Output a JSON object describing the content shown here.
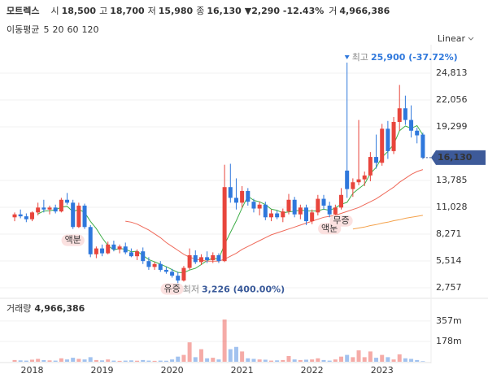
{
  "header": {
    "name": "모트렉스",
    "items": [
      {
        "label": "시",
        "value": "18,500"
      },
      {
        "label": "고",
        "value": "18,700"
      },
      {
        "label": "저",
        "value": "15,980"
      },
      {
        "label": "종",
        "value": "16,130"
      }
    ],
    "change": "▼2,290 -12.43%",
    "volume_label": "거",
    "volume": "4,966,386"
  },
  "chart_data": {
    "type": "candlestick",
    "legend_title": "이동평균",
    "scale_label": "Linear",
    "volume_title": "거래량",
    "volume_value": "4,966,386",
    "last_price_label": "16,130",
    "up_color": "#e8453c",
    "down_color": "#2f78dc",
    "categories": [
      null,
      null,
      null,
      "2018",
      null,
      null,
      null,
      null,
      null,
      null,
      null,
      null,
      null,
      null,
      null,
      "2019",
      null,
      null,
      null,
      null,
      null,
      null,
      null,
      null,
      null,
      null,
      null,
      "2020",
      null,
      null,
      null,
      null,
      null,
      null,
      null,
      null,
      null,
      null,
      null,
      "2021",
      null,
      null,
      null,
      null,
      null,
      null,
      null,
      null,
      null,
      null,
      null,
      "2022",
      null,
      null,
      null,
      null,
      null,
      null,
      null,
      null,
      null,
      null,
      null,
      "2023",
      null,
      null,
      null,
      null,
      null,
      null,
      null
    ],
    "open": [
      10000,
      10300,
      10100,
      9800,
      10500,
      11000,
      10800,
      11000,
      10600,
      11800,
      11500,
      9000,
      11200,
      9000,
      6200,
      6800,
      6300,
      7200,
      6700,
      7000,
      6400,
      6000,
      6500,
      5500,
      4900,
      5200,
      4600,
      4400,
      4000,
      3500,
      4800,
      6100,
      5400,
      5900,
      5600,
      6100,
      5500,
      13100,
      12000,
      11500,
      12700,
      11600,
      10900,
      11300,
      10000,
      10400,
      10000,
      10600,
      11800,
      10300,
      11000,
      9600,
      10500,
      11900,
      11200,
      10300,
      11000,
      14800,
      12900,
      13600,
      13900,
      14300,
      16200,
      15600,
      19100,
      16800,
      19800,
      21200,
      20000,
      18900,
      18500
    ],
    "high": [
      10500,
      10800,
      10400,
      10600,
      11500,
      11800,
      11200,
      11300,
      12000,
      12500,
      11800,
      11500,
      11400,
      9200,
      7000,
      7200,
      7500,
      7600,
      7200,
      7400,
      6800,
      6700,
      6900,
      5900,
      5400,
      5500,
      4900,
      4700,
      4400,
      5000,
      6800,
      6600,
      6200,
      6500,
      6400,
      6300,
      15400,
      15500,
      14000,
      13200,
      13000,
      11900,
      11600,
      11600,
      10800,
      10700,
      10900,
      12400,
      12100,
      11300,
      11300,
      10800,
      12300,
      12300,
      11600,
      11300,
      13000,
      25900,
      14000,
      20000,
      14700,
      16700,
      18500,
      19600,
      19900,
      20300,
      23600,
      22500,
      21500,
      19200,
      18700
    ],
    "low": [
      9600,
      9900,
      9500,
      9600,
      10200,
      10500,
      10300,
      10400,
      10500,
      11300,
      8800,
      8900,
      8800,
      5900,
      5800,
      6000,
      6200,
      6500,
      6300,
      6200,
      5900,
      5600,
      5200,
      4600,
      4600,
      4400,
      4200,
      3800,
      3226,
      3400,
      4600,
      5200,
      5100,
      5300,
      5300,
      5300,
      5400,
      11500,
      10800,
      11000,
      11200,
      10500,
      10200,
      9700,
      9600,
      9800,
      9500,
      10300,
      10000,
      9800,
      9200,
      9300,
      10200,
      10800,
      10000,
      9900,
      10800,
      12000,
      12100,
      13300,
      13200,
      13700,
      15000,
      15300,
      16000,
      16500,
      18900,
      19500,
      18200,
      17600,
      15980
    ],
    "close": [
      10300,
      10100,
      9800,
      10500,
      11000,
      10800,
      11000,
      10600,
      11800,
      11500,
      9000,
      11200,
      9000,
      6200,
      6800,
      6300,
      7200,
      6700,
      7000,
      6400,
      6000,
      6500,
      5500,
      4900,
      5200,
      4600,
      4400,
      4000,
      3500,
      4800,
      6100,
      5400,
      5900,
      5600,
      6100,
      5500,
      13100,
      12000,
      11500,
      12700,
      11600,
      10900,
      11300,
      10000,
      10400,
      10000,
      10600,
      11800,
      10300,
      11000,
      9600,
      10500,
      11900,
      11200,
      10300,
      11000,
      12300,
      12900,
      13600,
      13900,
      14300,
      16200,
      15600,
      19100,
      16800,
      19800,
      21200,
      20000,
      18900,
      18420,
      16130
    ],
    "volume": [
      15000000,
      12000000,
      10000000,
      18000000,
      25000000,
      14000000,
      12000000,
      10000000,
      30000000,
      20000000,
      35000000,
      25000000,
      20000000,
      40000000,
      15000000,
      12000000,
      20000000,
      10000000,
      8000000,
      10000000,
      12000000,
      9000000,
      15000000,
      10000000,
      8000000,
      10000000,
      9000000,
      20000000,
      45000000,
      60000000,
      170000000,
      40000000,
      110000000,
      30000000,
      35000000,
      20000000,
      370000000,
      110000000,
      130000000,
      90000000,
      30000000,
      25000000,
      20000000,
      18000000,
      10000000,
      12000000,
      15000000,
      50000000,
      20000000,
      15000000,
      18000000,
      20000000,
      30000000,
      15000000,
      10000000,
      20000000,
      45000000,
      60000000,
      40000000,
      100000000,
      40000000,
      90000000,
      35000000,
      60000000,
      40000000,
      20000000,
      65000000,
      30000000,
      25000000,
      15000000,
      4966386
    ],
    "series": [
      {
        "name": "5",
        "color": "#3fae49",
        "values": [
          null,
          null,
          null,
          null,
          10340,
          10640,
          10680,
          10780,
          11040,
          11140,
          10580,
          10820,
          10500,
          9580,
          8840,
          7900,
          7100,
          6640,
          6800,
          6720,
          6460,
          6520,
          6080,
          5660,
          5420,
          5180,
          4920,
          4620,
          4340,
          4300,
          4580,
          4760,
          5140,
          5560,
          5800,
          5700,
          7220,
          8440,
          9640,
          10960,
          12180,
          11740,
          11600,
          11300,
          10840,
          10720,
          10460,
          10560,
          10620,
          10740,
          10660,
          10640,
          10660,
          10840,
          10700,
          10980,
          11340,
          11540,
          12460,
          12940,
          13400,
          14500,
          15120,
          16180,
          16760,
          17500,
          18900,
          19380,
          19140,
          19420,
          18460
        ]
      },
      {
        "name": "20",
        "color": "#ef6a5a",
        "values": [
          null,
          null,
          null,
          null,
          null,
          null,
          null,
          null,
          null,
          null,
          null,
          null,
          null,
          null,
          null,
          null,
          null,
          null,
          null,
          9600,
          9500,
          9300,
          9000,
          8700,
          8300,
          7900,
          7400,
          7000,
          6600,
          6200,
          5900,
          5700,
          5600,
          5500,
          5500,
          5500,
          5700,
          6000,
          6300,
          6700,
          7000,
          7300,
          7600,
          7900,
          8200,
          8400,
          8600,
          8800,
          9000,
          9200,
          9400,
          9600,
          9800,
          10000,
          10100,
          10200,
          10400,
          10600,
          10800,
          11000,
          11300,
          11600,
          11900,
          12300,
          12700,
          13100,
          13600,
          14000,
          14400,
          14700,
          14900
        ]
      },
      {
        "name": "60",
        "color": "#f4a14a",
        "values": [
          null,
          null,
          null,
          null,
          null,
          null,
          null,
          null,
          null,
          null,
          null,
          null,
          null,
          null,
          null,
          null,
          null,
          null,
          null,
          null,
          null,
          null,
          null,
          null,
          null,
          null,
          null,
          null,
          null,
          null,
          null,
          null,
          null,
          null,
          null,
          null,
          null,
          null,
          null,
          null,
          null,
          null,
          null,
          null,
          null,
          null,
          null,
          null,
          null,
          null,
          null,
          null,
          null,
          null,
          null,
          null,
          null,
          null,
          8800,
          8900,
          9000,
          9150,
          9250,
          9400,
          9500,
          9650,
          9750,
          9900,
          10000,
          10100,
          10200
        ]
      },
      {
        "name": "120",
        "color": "#a66ee0",
        "values": [
          null,
          null,
          null,
          null,
          null,
          null,
          null,
          null,
          null,
          null,
          null,
          null,
          null,
          null,
          null,
          null,
          null,
          null,
          null,
          null,
          null,
          null,
          null,
          null,
          null,
          null,
          null,
          null,
          null,
          null,
          null,
          null,
          null,
          null,
          null,
          null,
          null,
          null,
          null,
          null,
          null,
          null,
          null,
          null,
          null,
          null,
          null,
          null,
          null,
          null,
          null,
          null,
          null,
          null,
          null,
          null,
          null,
          null,
          null,
          null,
          null,
          null,
          null,
          null,
          null,
          null,
          null,
          null,
          null,
          null,
          null
        ]
      }
    ],
    "high_annotation": {
      "label": "최고",
      "text": "25,900 (-37.72%)"
    },
    "low_annotation": {
      "label": "최저",
      "text": "3,226 (400.00%)"
    },
    "events": [
      {
        "label": "액분",
        "at": 10
      },
      {
        "label": "유증",
        "at": 27
      },
      {
        "label": "액분",
        "at": 54
      },
      {
        "label": "무증",
        "at": 56
      }
    ],
    "ylim": [
      2090,
      27150
    ],
    "yticks": [
      {
        "value": 2757,
        "label": "2,757"
      },
      {
        "value": 5514,
        "label": "5,514"
      },
      {
        "value": 8271,
        "label": "8,271"
      },
      {
        "value": 11028,
        "label": "11,028"
      },
      {
        "value": 13785,
        "label": "13,785"
      },
      {
        "value": 19299,
        "label": "19,299"
      },
      {
        "value": 22056,
        "label": "22,056"
      },
      {
        "value": 24813,
        "label": "24,813"
      }
    ],
    "volume_ylim": [
      0,
      520000000
    ],
    "volume_yticks": [
      {
        "value": 178000000,
        "label": "178m"
      },
      {
        "value": 357000000,
        "label": "357m"
      }
    ],
    "grid": true
  }
}
